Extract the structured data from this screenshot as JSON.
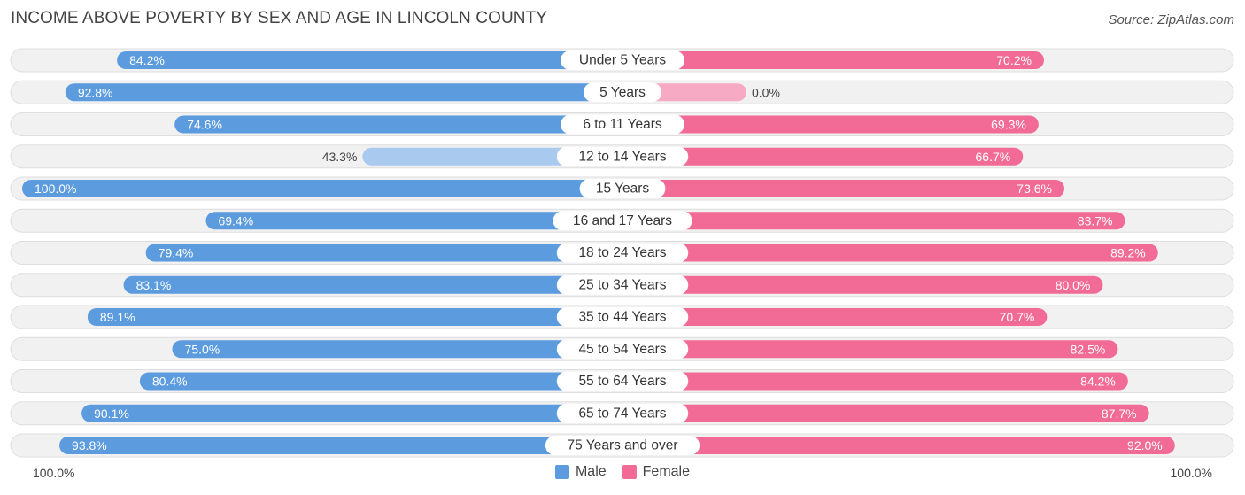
{
  "header": {
    "title": "INCOME ABOVE POVERTY BY SEX AND AGE IN LINCOLN COUNTY",
    "source": "Source: ZipAtlas.com"
  },
  "axis": {
    "left_label": "100.0%",
    "right_label": "100.0%"
  },
  "legend": {
    "male_label": "Male",
    "female_label": "Female"
  },
  "colors": {
    "male": "#5b9bde",
    "male_light": "#a9c9ee",
    "female": "#f26b96",
    "female_light": "#f6aac3",
    "track": "#efefef"
  },
  "chart_data": {
    "type": "bar",
    "orientation": "diverging-horizontal",
    "title": "INCOME ABOVE POVERTY BY SEX AND AGE IN LINCOLN COUNTY",
    "xlim": [
      -100,
      100
    ],
    "categories": [
      "Under 5 Years",
      "5 Years",
      "6 to 11 Years",
      "12 to 14 Years",
      "15 Years",
      "16 and 17 Years",
      "18 to 24 Years",
      "25 to 34 Years",
      "35 to 44 Years",
      "45 to 54 Years",
      "55 to 64 Years",
      "65 to 74 Years",
      "75 Years and over"
    ],
    "series": [
      {
        "name": "Male",
        "values": [
          84.2,
          92.8,
          74.6,
          43.3,
          100.0,
          69.4,
          79.4,
          83.1,
          89.1,
          75.0,
          80.4,
          90.1,
          93.8
        ],
        "labels": [
          "84.2%",
          "92.8%",
          "74.6%",
          "43.3%",
          "100.0%",
          "69.4%",
          "79.4%",
          "83.1%",
          "89.1%",
          "75.0%",
          "80.4%",
          "90.1%",
          "93.8%"
        ]
      },
      {
        "name": "Female",
        "values": [
          70.2,
          0.0,
          69.3,
          66.7,
          73.6,
          83.7,
          89.2,
          80.0,
          70.7,
          82.5,
          84.2,
          87.7,
          92.0
        ],
        "labels": [
          "70.2%",
          "0.0%",
          "69.3%",
          "66.7%",
          "73.6%",
          "83.7%",
          "89.2%",
          "80.0%",
          "70.7%",
          "82.5%",
          "84.2%",
          "87.7%",
          "92.0%"
        ]
      }
    ]
  }
}
